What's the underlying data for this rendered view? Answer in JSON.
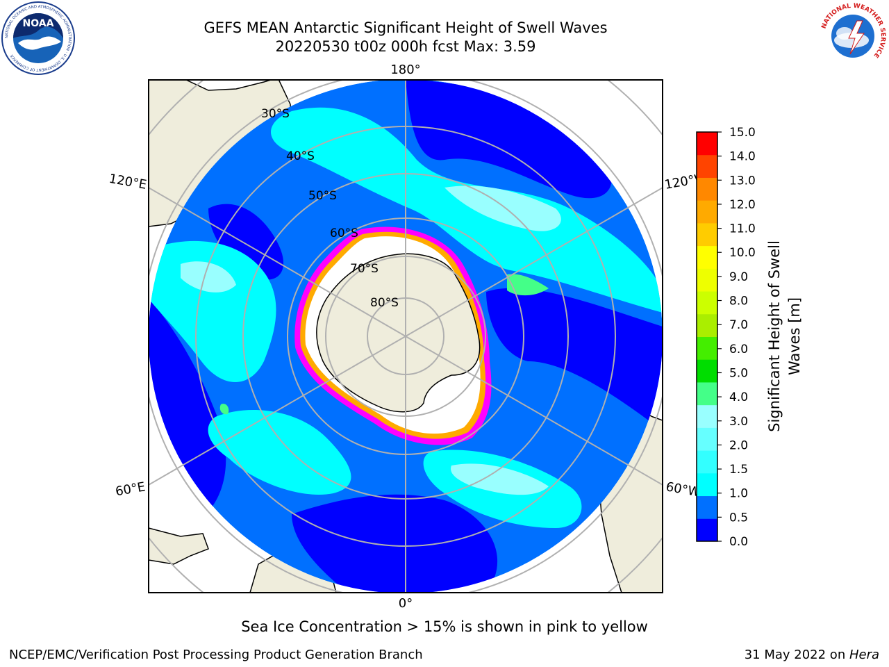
{
  "title": {
    "line1": "GEFS MEAN Antarctic Significant Height of Swell Waves",
    "line2": "20220530 t00z 000h fcst   Max: 3.59"
  },
  "map": {
    "projection": "south-polar-stereographic",
    "land_color": "#efeddc",
    "ocean_colors": [
      "#0000ff",
      "#0070ff",
      "#00ffff",
      "#33ffff",
      "#99ffff"
    ],
    "ice_colors": [
      "#ff00ff",
      "#ffaa00",
      "#ffff00"
    ],
    "meridian_labels": {
      "top": "180°",
      "bottom": "0°",
      "upper_left": "120°E",
      "upper_right": "120°W",
      "lower_left": "60°E",
      "lower_right": "60°W"
    },
    "parallel_labels": [
      "30°S",
      "40°S",
      "50°S",
      "60°S",
      "70°S",
      "80°S"
    ]
  },
  "colorbar": {
    "label_line1": "Significant Height of Swell",
    "label_line2": "Waves [m]",
    "ticks": [
      "0.0",
      "0.5",
      "1.0",
      "1.5",
      "2.0",
      "3.0",
      "4.0",
      "5.0",
      "6.0",
      "7.0",
      "8.0",
      "9.0",
      "10.0",
      "11.0",
      "12.0",
      "13.0",
      "14.0",
      "15.0"
    ],
    "colors": [
      "#0000ff",
      "#0070ff",
      "#00ffff",
      "#33ffff",
      "#66ffff",
      "#99ffff",
      "#44ff88",
      "#00dd00",
      "#44ee00",
      "#aaee00",
      "#ccff00",
      "#eeff00",
      "#ffff00",
      "#ffcc00",
      "#ffaa00",
      "#ff8800",
      "#ff4400",
      "#ff0000"
    ]
  },
  "ice_note": "Sea Ice Concentration > 15% is shown in pink to yellow",
  "footer": {
    "left": "NCEP/EMC/Verification Post Processing Product Generation Branch",
    "right_prefix": "31 May 2022 on ",
    "right_host": "Hera"
  },
  "logos": {
    "noaa": "NOAA",
    "noaa_ring": "NATIONAL OCEANIC AND ATMOSPHERIC ADMINISTRATION · U.S. DEPARTMENT OF COMMERCE",
    "nws_ring": "NATIONAL WEATHER SERVICE"
  }
}
